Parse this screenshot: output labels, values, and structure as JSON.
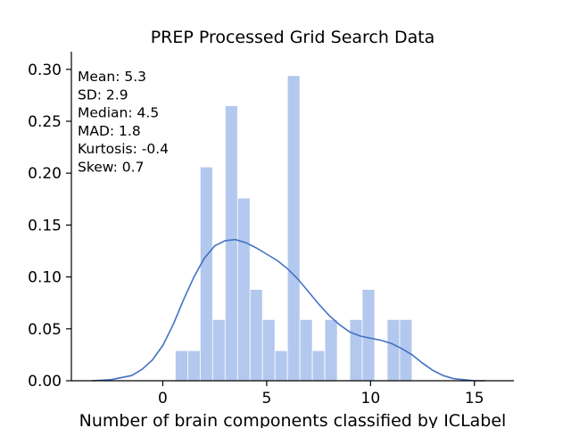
{
  "chart_data": {
    "type": "bar",
    "title": "PREP Processed Grid Search Data",
    "xlabel": "Number of brain components classified by ICLabel",
    "ylabel": "",
    "xlim": [
      -4.4,
      16.9
    ],
    "ylim": [
      0,
      0.317
    ],
    "xticks": [
      0,
      5,
      10,
      15
    ],
    "yticks": [
      "0.00",
      "0.05",
      "0.10",
      "0.15",
      "0.20",
      "0.25",
      "0.30"
    ],
    "grid": false,
    "histogram": {
      "bins": [
        {
          "x0": 0.6,
          "x1": 1.2,
          "density": 0.029
        },
        {
          "x0": 1.2,
          "x1": 1.8,
          "density": 0.029
        },
        {
          "x0": 1.8,
          "x1": 2.4,
          "density": 0.206
        },
        {
          "x0": 2.4,
          "x1": 3.0,
          "density": 0.059
        },
        {
          "x0": 3.0,
          "x1": 3.6,
          "density": 0.265
        },
        {
          "x0": 3.6,
          "x1": 4.2,
          "density": 0.176
        },
        {
          "x0": 4.2,
          "x1": 4.8,
          "density": 0.088
        },
        {
          "x0": 4.8,
          "x1": 5.4,
          "density": 0.059
        },
        {
          "x0": 5.4,
          "x1": 6.0,
          "density": 0.029
        },
        {
          "x0": 6.0,
          "x1": 6.6,
          "density": 0.294
        },
        {
          "x0": 6.6,
          "x1": 7.2,
          "density": 0.059
        },
        {
          "x0": 7.2,
          "x1": 7.8,
          "density": 0.029
        },
        {
          "x0": 7.8,
          "x1": 8.4,
          "density": 0.059
        },
        {
          "x0": 8.4,
          "x1": 9.0,
          "density": 0
        },
        {
          "x0": 9.0,
          "x1": 9.6,
          "density": 0.059
        },
        {
          "x0": 9.6,
          "x1": 10.2,
          "density": 0.088
        },
        {
          "x0": 10.2,
          "x1": 10.8,
          "density": 0
        },
        {
          "x0": 10.8,
          "x1": 11.4,
          "density": 0.059
        },
        {
          "x0": 11.4,
          "x1": 12.0,
          "density": 0.059
        }
      ],
      "color": "#b3c8ee"
    },
    "kde": {
      "color": "#4472c4",
      "x": [
        -3.4,
        -2.5,
        -1.5,
        -1.0,
        -0.5,
        0.0,
        0.5,
        1.0,
        1.5,
        2.0,
        2.5,
        3.0,
        3.5,
        4.0,
        4.5,
        5.0,
        5.5,
        6.0,
        6.5,
        7.0,
        7.5,
        8.0,
        8.5,
        9.0,
        9.5,
        10.0,
        10.5,
        11.0,
        11.5,
        12.0,
        12.5,
        13.0,
        13.5,
        14.0,
        14.5,
        15.0,
        15.5
      ],
      "y": [
        0.0,
        0.001,
        0.005,
        0.011,
        0.02,
        0.034,
        0.054,
        0.078,
        0.1,
        0.118,
        0.13,
        0.135,
        0.136,
        0.133,
        0.128,
        0.122,
        0.116,
        0.108,
        0.098,
        0.086,
        0.074,
        0.063,
        0.054,
        0.047,
        0.043,
        0.041,
        0.039,
        0.036,
        0.031,
        0.025,
        0.017,
        0.01,
        0.005,
        0.002,
        0.001,
        0.0,
        0.0
      ]
    },
    "annotations": [
      "Mean: 5.3",
      "SD: 2.9",
      "Median: 4.5",
      "MAD: 1.8",
      "Kurtosis: -0.4",
      "Skew: 0.7"
    ]
  }
}
